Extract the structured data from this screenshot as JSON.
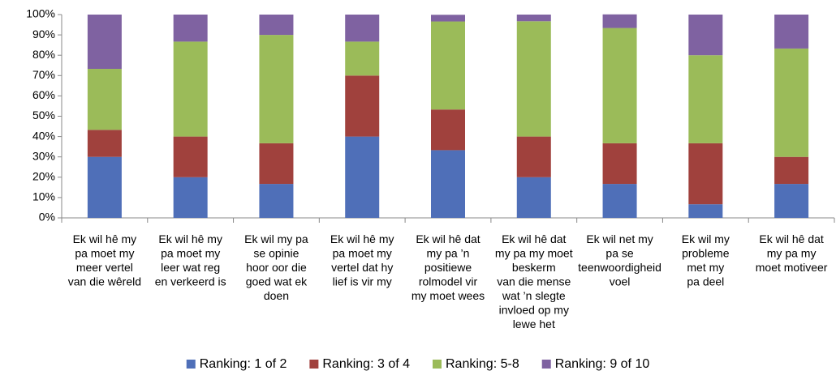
{
  "chart_data": {
    "type": "stacked_bar",
    "categories": [
      "Ek wil hê my\npa moet my\nmeer vertel\nvan die wêreld",
      "Ek wil hê my\npa moet my\nleer wat reg\nen verkeerd is",
      "Ek wil my pa\nse opinie\nhoor oor die\ngoed wat ek\ndoen",
      "Ek wil hê my\npa moet my\nvertel dat hy\nlief is vir my",
      "Ek wil hê dat\nmy pa ’n\npositiewe\nrolmodel vir\nmy moet wees",
      "Ek wil hê dat\nmy pa my moet\nbeskerm\nvan die mense\nwat ’n slegte\ninvloed op my\nlewe het",
      "Ek wil net my\npa se\nteenwoordigheid\nvoel",
      "Ek wil my\nprobleme\nmet my\npa deel",
      "Ek wil hê dat\nmy pa my\nmoet motiveer"
    ],
    "series": [
      {
        "name": "Ranking: 1 of 2",
        "color": "#4f6fb8",
        "values": [
          30,
          20,
          16.7,
          40,
          33.3,
          20,
          16.7,
          6.7,
          16.7
        ]
      },
      {
        "name": "Ranking: 3 of 4",
        "color": "#a0413d",
        "values": [
          13.3,
          20,
          20,
          30,
          20,
          20,
          20,
          30,
          13.3
        ]
      },
      {
        "name": "Ranking: 5-8",
        "color": "#9bbb59",
        "values": [
          30,
          46.7,
          53.3,
          16.7,
          43.3,
          56.7,
          56.7,
          43.3,
          53.3
        ]
      },
      {
        "name": "Ranking: 9 of 10",
        "color": "#7f62a1",
        "values": [
          26.7,
          13.3,
          10,
          13.3,
          3.3,
          3.3,
          6.7,
          20,
          16.7
        ]
      }
    ],
    "ylim": [
      0,
      100
    ],
    "yticks": [
      {
        "value": 0,
        "label": "0%"
      },
      {
        "value": 10,
        "label": "10%"
      },
      {
        "value": 20,
        "label": "20%"
      },
      {
        "value": 30,
        "label": "30%"
      },
      {
        "value": 40,
        "label": "40%"
      },
      {
        "value": 50,
        "label": "50%"
      },
      {
        "value": 60,
        "label": "60%"
      },
      {
        "value": 70,
        "label": "70%"
      },
      {
        "value": 80,
        "label": "80%"
      },
      {
        "value": 90,
        "label": "90%"
      },
      {
        "value": 100,
        "label": "100%"
      }
    ],
    "legend": "bottom"
  }
}
